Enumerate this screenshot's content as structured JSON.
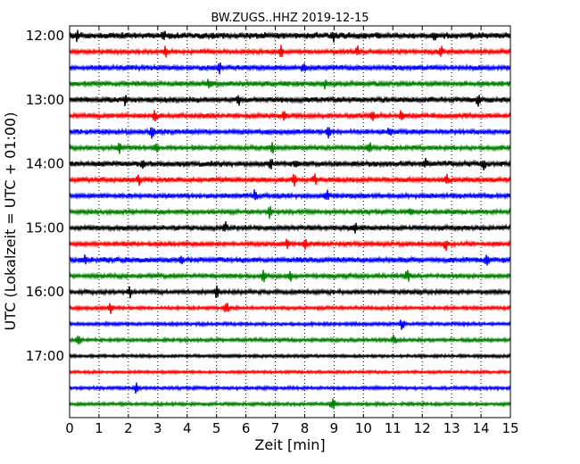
{
  "chart_data": {
    "type": "line",
    "title": "BW.ZUGS..HHZ 2019-12-15",
    "xlabel": "Zeit  [min]",
    "ylabel": "UTC (Lokalzeit = UTC + 01:00)",
    "xlim": [
      0,
      15
    ],
    "x_ticks": [
      "0",
      "1",
      "2",
      "3",
      "4",
      "5",
      "6",
      "7",
      "8",
      "9",
      "10",
      "11",
      "12",
      "13",
      "14",
      "15"
    ],
    "y_tick_labels": [
      "12:00",
      "13:00",
      "14:00",
      "15:00",
      "16:00",
      "17:00"
    ],
    "grid": "vertical dotted",
    "trace_colors": [
      "#000000",
      "#ff0000",
      "#0000ff",
      "#008000"
    ],
    "traces": [
      {
        "start": "12:00",
        "amplitude": 0.9,
        "events": [
          0.25,
          3.2,
          9.0,
          12.4
        ]
      },
      {
        "start": "12:15",
        "amplitude": 0.5,
        "events": [
          3.25,
          7.2,
          9.8,
          12.65
        ]
      },
      {
        "start": "12:30",
        "amplitude": 0.6,
        "events": [
          5.1,
          7.95
        ]
      },
      {
        "start": "12:45",
        "amplitude": 0.6,
        "events": [
          4.75,
          8.7
        ]
      },
      {
        "start": "13:00",
        "amplitude": 0.7,
        "events": [
          1.9,
          5.75,
          13.9
        ]
      },
      {
        "start": "13:15",
        "amplitude": 0.6,
        "events": [
          2.9,
          7.3,
          10.3,
          11.3
        ]
      },
      {
        "start": "13:30",
        "amplitude": 0.6,
        "events": [
          2.8,
          8.8,
          10.9
        ]
      },
      {
        "start": "13:45",
        "amplitude": 0.5,
        "events": [
          1.7,
          2.95,
          6.9,
          10.2
        ]
      },
      {
        "start": "14:00",
        "amplitude": 0.7,
        "events": [
          2.5,
          6.85,
          7.7,
          12.1,
          14.1
        ]
      },
      {
        "start": "14:15",
        "amplitude": 0.6,
        "events": [
          2.35,
          7.65,
          8.35,
          12.85
        ]
      },
      {
        "start": "14:30",
        "amplitude": 0.6,
        "events": [
          6.3,
          8.75
        ]
      },
      {
        "start": "14:45",
        "amplitude": 0.5,
        "events": [
          6.8,
          11.6
        ]
      },
      {
        "start": "15:00",
        "amplitude": 0.6,
        "events": [
          5.3,
          9.7
        ]
      },
      {
        "start": "15:15",
        "amplitude": 0.5,
        "events": [
          7.4,
          8.0,
          12.8
        ]
      },
      {
        "start": "15:30",
        "amplitude": 0.7,
        "events": [
          0.5,
          3.8,
          14.2
        ]
      },
      {
        "start": "15:45",
        "amplitude": 0.5,
        "events": [
          6.6,
          7.5,
          11.5
        ]
      },
      {
        "start": "16:00",
        "amplitude": 0.5,
        "events": [
          2.05,
          5.0
        ]
      },
      {
        "start": "16:15",
        "amplitude": 0.3,
        "events": [
          1.4,
          5.35
        ]
      },
      {
        "start": "16:30",
        "amplitude": 0.25,
        "events": [
          11.3
        ]
      },
      {
        "start": "16:45",
        "amplitude": 0.3,
        "events": [
          0.3,
          11.05
        ]
      },
      {
        "start": "17:00",
        "amplitude": 0.2,
        "events": []
      },
      {
        "start": "17:15",
        "amplitude": 0.15,
        "events": []
      },
      {
        "start": "17:30",
        "amplitude": 0.25,
        "events": [
          2.25
        ]
      },
      {
        "start": "17:45",
        "amplitude": 0.25,
        "events": [
          8.95
        ]
      }
    ]
  }
}
